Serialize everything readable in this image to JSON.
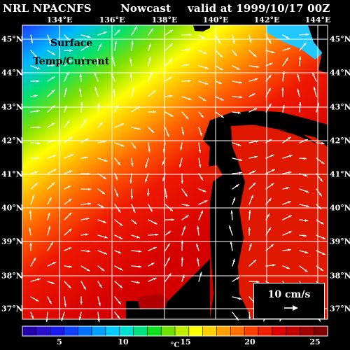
{
  "header": {
    "model": "NRL NPACNFS",
    "run_type": "Nowcast",
    "valid_time": "valid at 1999/10/17 00Z"
  },
  "overlay": {
    "line1": "Surface",
    "line2": "Temp/Current"
  },
  "map": {
    "lon_labels": [
      "134°E",
      "136°E",
      "138°E",
      "140°E",
      "142°E",
      "144°E"
    ],
    "lat_labels": [
      "45°N",
      "44°N",
      "43°N",
      "42°N",
      "41°N",
      "40°N",
      "39°N",
      "38°N",
      "37°N"
    ],
    "land_color": "#000000",
    "grid_color": "#ffffff",
    "vector_color": "#ffffff"
  },
  "scale": {
    "label": "10 cm/s"
  },
  "colorbar": {
    "ticks": [
      "5",
      "10",
      "15",
      "20",
      "25"
    ],
    "unit": "°C",
    "colors": [
      "#2200aa",
      "#2a10cc",
      "#1a1aee",
      "#1040ff",
      "#0070ff",
      "#00a0ff",
      "#00ccff",
      "#00e0d0",
      "#00e080",
      "#10e020",
      "#70e000",
      "#c0ee00",
      "#ffff00",
      "#ffd000",
      "#ffa000",
      "#ff7000",
      "#ff4000",
      "#ee2000",
      "#dd0000",
      "#c00000",
      "#a00000",
      "#800000"
    ]
  }
}
